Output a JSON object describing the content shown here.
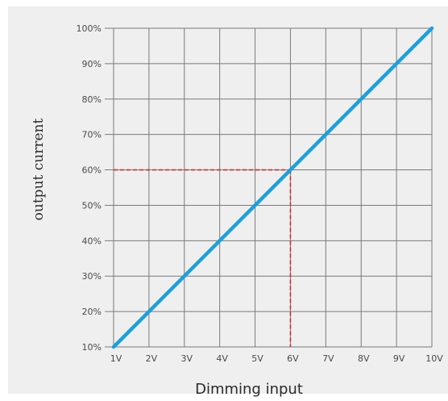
{
  "chart_data": {
    "type": "line",
    "xlabel": "Dimming input",
    "ylabel": "output current",
    "x_tick_labels": [
      "1V",
      "2V",
      "3V",
      "4V",
      "5V",
      "6V",
      "7V",
      "8V",
      "9V",
      "10V"
    ],
    "y_tick_labels": [
      "10%",
      "20%",
      "30%",
      "40%",
      "50%",
      "60%",
      "70%",
      "80%",
      "90%",
      "100%"
    ],
    "xlim": [
      1,
      10
    ],
    "ylim": [
      10,
      100
    ],
    "grid": true,
    "series": [
      {
        "x": [
          1,
          10
        ],
        "y": [
          10,
          100
        ],
        "color": "#1aa0de"
      }
    ],
    "reference_point": {
      "x": 6,
      "y": 60,
      "color": "#d92b2b",
      "style": "dashed"
    },
    "background_color": "#efefef",
    "grid_color": "#7a7a7a"
  }
}
